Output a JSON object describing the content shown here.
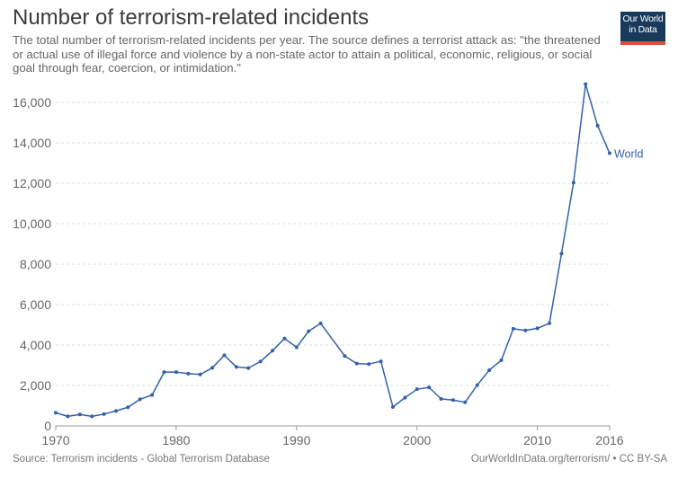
{
  "header": {
    "title": "Number of terrorism-related incidents",
    "subtitle": "The total number of terrorism-related incidents per year. The source defines a terrorist attack as: \"the threatened or actual use of illegal force and violence by a non-state actor to attain a political, economic, religious, or social goal through fear, coercion, or intimidation.\""
  },
  "logo": {
    "line1": "Our World",
    "line2": "in Data"
  },
  "footer": {
    "source": "Source: Terrorism incidents - Global Terrorism Database",
    "credit": "OurWorldInData.org/terrorism/ • CC BY-SA"
  },
  "colors": {
    "series": "#3360a9",
    "grid": "#dddddd",
    "axis": "#999999",
    "text": "#666666"
  },
  "chart_data": {
    "type": "line",
    "title": "Number of terrorism-related incidents",
    "xlabel": "",
    "ylabel": "",
    "xlim": [
      1970,
      2016
    ],
    "ylim": [
      0,
      16000
    ],
    "x_ticks": [
      1970,
      1980,
      1990,
      2000,
      2010,
      2016
    ],
    "y_ticks": [
      0,
      2000,
      4000,
      6000,
      8000,
      10000,
      12000,
      14000,
      16000
    ],
    "y_tick_labels": [
      "0",
      "2,000",
      "4,000",
      "6,000",
      "8,000",
      "10,000",
      "12,000",
      "14,000",
      "16,000"
    ],
    "grid": "horizontal dashed",
    "series": [
      {
        "name": "World",
        "x": [
          1970,
          1971,
          1972,
          1973,
          1974,
          1975,
          1976,
          1977,
          1978,
          1979,
          1980,
          1981,
          1982,
          1983,
          1984,
          1985,
          1986,
          1987,
          1988,
          1989,
          1990,
          1991,
          1992,
          1994,
          1995,
          1996,
          1997,
          1998,
          1999,
          2000,
          2001,
          2002,
          2003,
          2004,
          2005,
          2006,
          2007,
          2008,
          2009,
          2010,
          2011,
          2012,
          2013,
          2014,
          2015,
          2016
        ],
        "values": [
          651,
          471,
          568,
          473,
          581,
          740,
          923,
          1319,
          1526,
          2662,
          2662,
          2586,
          2544,
          2870,
          3495,
          2915,
          2860,
          3183,
          3720,
          4324,
          3887,
          4683,
          5071,
          3456,
          3081,
          3058,
          3197,
          934,
          1395,
          1814,
          1906,
          1333,
          1278,
          1166,
          2017,
          2758,
          3242,
          4805,
          4721,
          4826,
          5076,
          8522,
          12036,
          16903,
          14852,
          13488
        ]
      }
    ]
  }
}
